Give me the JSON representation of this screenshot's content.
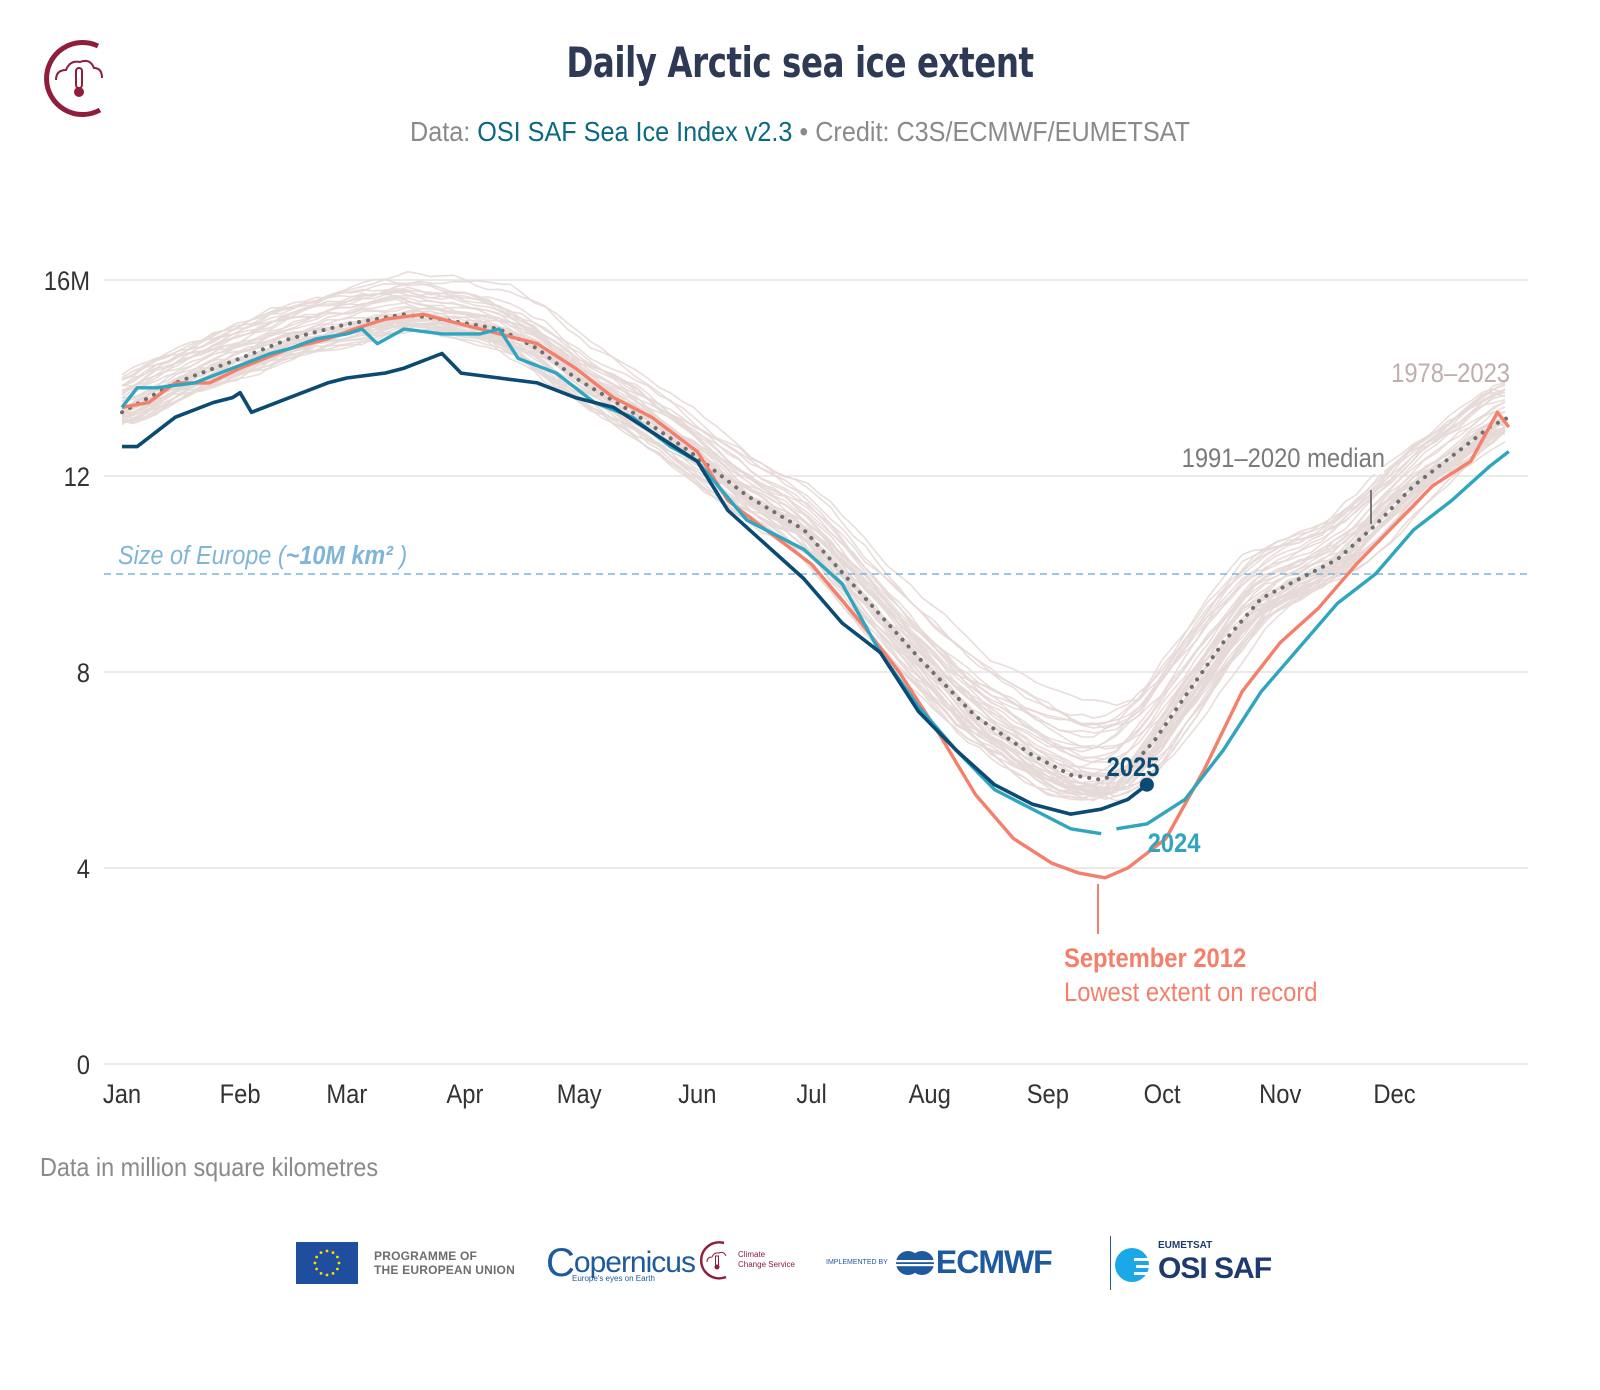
{
  "header": {
    "title": "Daily Arctic sea ice extent",
    "subtitle_prefix": "Data: ",
    "subtitle_source": "OSI SAF Sea Ice Index v2.3",
    "subtitle_credit": " • Credit: C3S/ECMWF/EUMETSAT",
    "logo_icon": "climate-change-service-logo"
  },
  "footnote": "Data in million square kilometres",
  "logos": {
    "eu_line1": "PROGRAMME OF",
    "eu_line2": "THE EUROPEAN UNION",
    "copernicus": "opernicus",
    "copernicus_c": "C",
    "copernicus_tagline": "Europe's eyes on Earth",
    "c3s_line1": "Climate",
    "c3s_line2": "Change Service",
    "implemented_by": "IMPLEMENTED BY",
    "ecmwf": "ECMWF",
    "eumetsat": "EUMETSAT",
    "osisaf": "OSI SAF"
  },
  "colors": {
    "title": "#2e3a55",
    "source_link": "#0b6a82",
    "historic": "#e6d9d7",
    "median": "#6f6f6f",
    "y2012": "#f47f6b",
    "y2024": "#2fa5bf",
    "y2025": "#0b4a73",
    "europe": "#7fb5d8",
    "grid": "#e4e4e4",
    "axis_text": "#333333",
    "annotation_grey": "#7a7a7a",
    "range_label": "#bfaeac"
  },
  "chart_data": {
    "type": "line",
    "title": "Daily Arctic sea ice extent",
    "xlabel": "",
    "ylabel": "Data in million square kilometres",
    "x_unit": "day of year",
    "xlim": [
      1,
      365
    ],
    "ylim": [
      0,
      17
    ],
    "grid": true,
    "y_ticks": [
      0,
      4,
      8,
      12,
      16
    ],
    "y_tick_labels": [
      "0",
      "4",
      "8",
      "12",
      "16M"
    ],
    "x_ticks": [
      1,
      32,
      60,
      91,
      121,
      152,
      182,
      213,
      244,
      274,
      305,
      335
    ],
    "x_tick_labels": [
      "Jan",
      "Feb",
      "Mar",
      "Apr",
      "May",
      "Jun",
      "Jul",
      "Aug",
      "Sep",
      "Oct",
      "Nov",
      "Dec"
    ],
    "reference_line": {
      "value": 10,
      "label_prefix": "Size of Europe (",
      "label_bold": "~10M km²",
      "label_suffix": " )"
    },
    "historic_range": {
      "label": "1978–2023",
      "count": 46
    },
    "series": [
      {
        "name": "1991–2020 median",
        "style": "dotted",
        "points": [
          [
            1,
            13.3
          ],
          [
            15,
            13.9
          ],
          [
            32,
            14.4
          ],
          [
            45,
            14.8
          ],
          [
            60,
            15.1
          ],
          [
            75,
            15.3
          ],
          [
            85,
            15.2
          ],
          [
            100,
            15.0
          ],
          [
            110,
            14.6
          ],
          [
            120,
            14.0
          ],
          [
            135,
            13.3
          ],
          [
            150,
            12.5
          ],
          [
            165,
            11.6
          ],
          [
            180,
            10.9
          ],
          [
            195,
            9.6
          ],
          [
            210,
            8.3
          ],
          [
            225,
            7.1
          ],
          [
            240,
            6.3
          ],
          [
            250,
            5.9
          ],
          [
            258,
            5.8
          ],
          [
            265,
            6.0
          ],
          [
            272,
            6.6
          ],
          [
            280,
            7.5
          ],
          [
            290,
            8.6
          ],
          [
            300,
            9.5
          ],
          [
            310,
            9.9
          ],
          [
            320,
            10.3
          ],
          [
            330,
            11.0
          ],
          [
            340,
            11.8
          ],
          [
            350,
            12.4
          ],
          [
            360,
            13.0
          ],
          [
            365,
            13.2
          ]
        ]
      },
      {
        "name": "2012",
        "label_line1": "September 2012",
        "label_line2": "Lowest extent on record",
        "points": [
          [
            1,
            13.4
          ],
          [
            8,
            13.5
          ],
          [
            15,
            13.9
          ],
          [
            24,
            13.9
          ],
          [
            32,
            14.2
          ],
          [
            45,
            14.6
          ],
          [
            55,
            14.8
          ],
          [
            62,
            15.0
          ],
          [
            70,
            15.2
          ],
          [
            80,
            15.3
          ],
          [
            90,
            15.1
          ],
          [
            100,
            14.9
          ],
          [
            110,
            14.7
          ],
          [
            120,
            14.2
          ],
          [
            130,
            13.6
          ],
          [
            140,
            13.2
          ],
          [
            152,
            12.5
          ],
          [
            160,
            11.5
          ],
          [
            170,
            10.9
          ],
          [
            182,
            10.2
          ],
          [
            195,
            9.0
          ],
          [
            205,
            8.0
          ],
          [
            215,
            6.8
          ],
          [
            225,
            5.5
          ],
          [
            235,
            4.6
          ],
          [
            245,
            4.1
          ],
          [
            252,
            3.9
          ],
          [
            259,
            3.8
          ],
          [
            265,
            4.0
          ],
          [
            275,
            4.6
          ],
          [
            285,
            6.0
          ],
          [
            295,
            7.6
          ],
          [
            305,
            8.6
          ],
          [
            315,
            9.3
          ],
          [
            325,
            10.2
          ],
          [
            335,
            11.0
          ],
          [
            345,
            11.8
          ],
          [
            355,
            12.3
          ],
          [
            362,
            13.3
          ],
          [
            365,
            13.0
          ]
        ]
      },
      {
        "name": "2024",
        "label": "2024",
        "points": [
          [
            1,
            13.4
          ],
          [
            5,
            13.8
          ],
          [
            10,
            13.8
          ],
          [
            20,
            13.9
          ],
          [
            30,
            14.2
          ],
          [
            40,
            14.5
          ],
          [
            45,
            14.6
          ],
          [
            52,
            14.8
          ],
          [
            60,
            14.9
          ],
          [
            64,
            15.0
          ],
          [
            68,
            14.7
          ],
          [
            75,
            15.0
          ],
          [
            85,
            14.9
          ],
          [
            95,
            14.9
          ],
          [
            100,
            15.0
          ],
          [
            105,
            14.4
          ],
          [
            115,
            14.1
          ],
          [
            125,
            13.5
          ],
          [
            135,
            13.2
          ],
          [
            145,
            12.6
          ],
          [
            152,
            12.3
          ],
          [
            165,
            11.1
          ],
          [
            180,
            10.5
          ],
          [
            190,
            9.8
          ],
          [
            200,
            8.4
          ],
          [
            210,
            7.3
          ],
          [
            220,
            6.4
          ],
          [
            230,
            5.6
          ],
          [
            240,
            5.2
          ],
          [
            250,
            4.8
          ],
          [
            258,
            4.7
          ],
          null,
          [
            262,
            4.8
          ],
          [
            270,
            4.9
          ],
          [
            280,
            5.4
          ],
          [
            290,
            6.4
          ],
          [
            300,
            7.6
          ],
          [
            310,
            8.5
          ],
          [
            320,
            9.4
          ],
          [
            330,
            10.0
          ],
          [
            340,
            10.9
          ],
          [
            350,
            11.5
          ],
          [
            360,
            12.2
          ],
          [
            365,
            12.5
          ]
        ]
      },
      {
        "name": "2025",
        "label": "2025",
        "points": [
          [
            1,
            12.6
          ],
          [
            5,
            12.6
          ],
          [
            15,
            13.2
          ],
          [
            25,
            13.5
          ],
          [
            30,
            13.6
          ],
          [
            32,
            13.7
          ],
          [
            35,
            13.3
          ],
          [
            45,
            13.6
          ],
          [
            55,
            13.9
          ],
          [
            60,
            14.0
          ],
          [
            70,
            14.1
          ],
          [
            75,
            14.2
          ],
          [
            85,
            14.5
          ],
          [
            90,
            14.1
          ],
          [
            100,
            14.0
          ],
          [
            110,
            13.9
          ],
          [
            120,
            13.6
          ],
          [
            130,
            13.4
          ],
          [
            140,
            12.9
          ],
          [
            152,
            12.3
          ],
          [
            160,
            11.3
          ],
          [
            170,
            10.6
          ],
          [
            180,
            9.9
          ],
          [
            190,
            9.0
          ],
          [
            200,
            8.4
          ],
          [
            210,
            7.2
          ],
          [
            220,
            6.4
          ],
          [
            230,
            5.7
          ],
          [
            240,
            5.3
          ],
          [
            250,
            5.1
          ],
          [
            258,
            5.2
          ],
          [
            265,
            5.4
          ],
          [
            270,
            5.7
          ]
        ]
      }
    ],
    "annotations": [
      {
        "text": "1991–2020 median",
        "target": "median"
      },
      {
        "text": "1978–2023",
        "target": "historic_range"
      },
      {
        "text": "2025",
        "target": "2025"
      },
      {
        "text": "2024",
        "target": "2024"
      },
      {
        "text": "September 2012",
        "subtext": "Lowest extent on record",
        "target": "2012"
      }
    ]
  }
}
